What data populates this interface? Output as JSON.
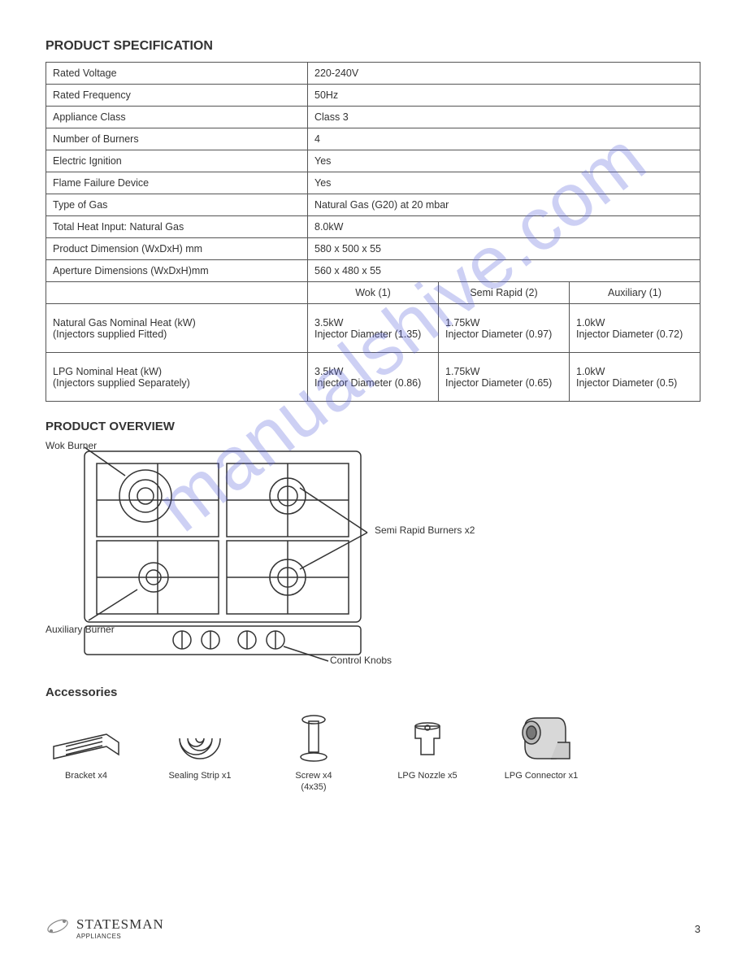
{
  "product_spec": {
    "title": "PRODUCT SPECIFICATION",
    "rows": [
      {
        "label": "Rated Voltage",
        "value": "220-240V"
      },
      {
        "label": "Rated Frequency",
        "value": "50Hz"
      },
      {
        "label": "Appliance Class",
        "value": "Class 3"
      },
      {
        "label": "Number of Burners",
        "value": "4"
      },
      {
        "label": "Electric Ignition",
        "value": "Yes"
      },
      {
        "label": "Flame Failure Device",
        "value": "Yes"
      },
      {
        "label": "Type of Gas",
        "value": "Natural Gas (G20) at 20 mbar"
      },
      {
        "label": "Total Heat Input: Natural Gas",
        "value": "8.0kW"
      },
      {
        "label": "Product Dimension (WxDxH) mm",
        "value": "580 x 500 x 55"
      },
      {
        "label": "Aperture Dimensions (WxDxH)mm",
        "value": "560 x 480 x 55"
      }
    ],
    "burner_headers": [
      "Wok (1)",
      "Semi Rapid (2)",
      "Auxiliary (1)"
    ],
    "burner_rows": [
      {
        "label": "Natural Gas Nominal Heat (kW)\n(Injectors supplied Fitted)",
        "cells": [
          "3.5kW\nInjector Diameter (1.35)",
          "1.75kW\nInjector Diameter (0.97)",
          "1.0kW\nInjector Diameter (0.72)"
        ]
      },
      {
        "label": "LPG Nominal Heat (kW)\n(Injectors supplied Separately)",
        "cells": [
          "3.5kW\nInjector Diameter (0.86)",
          "1.75kW\nInjector Diameter (0.65)",
          "1.0kW\nInjector Diameter (0.5)"
        ]
      }
    ]
  },
  "overview": {
    "title": "PRODUCT OVERVIEW",
    "callouts": {
      "wok": "Wok Burner",
      "semi": "Semi Rapid Burners x2",
      "aux": "Auxiliary Burner",
      "knobs": "Control Knobs"
    }
  },
  "accessories": {
    "title": "Accessories",
    "items": [
      {
        "name": "Bracket x4",
        "icon": "bracket"
      },
      {
        "name": "Sealing Strip x1",
        "icon": "seal"
      },
      {
        "name": "Screw x4\n(4x35)",
        "icon": "screw"
      },
      {
        "name": "LPG Nozzle x5",
        "icon": "nozzle"
      },
      {
        "name": "LPG Connector x1",
        "icon": "connector"
      }
    ]
  },
  "footer": {
    "brand": "STATESMAN",
    "sub": "APPLIANCES",
    "page": "3"
  },
  "watermark": "manualshive.com",
  "colors": {
    "border": "#555555",
    "text": "#333333",
    "watermark": "rgba(90,100,220,0.30)",
    "bg": "#ffffff"
  }
}
